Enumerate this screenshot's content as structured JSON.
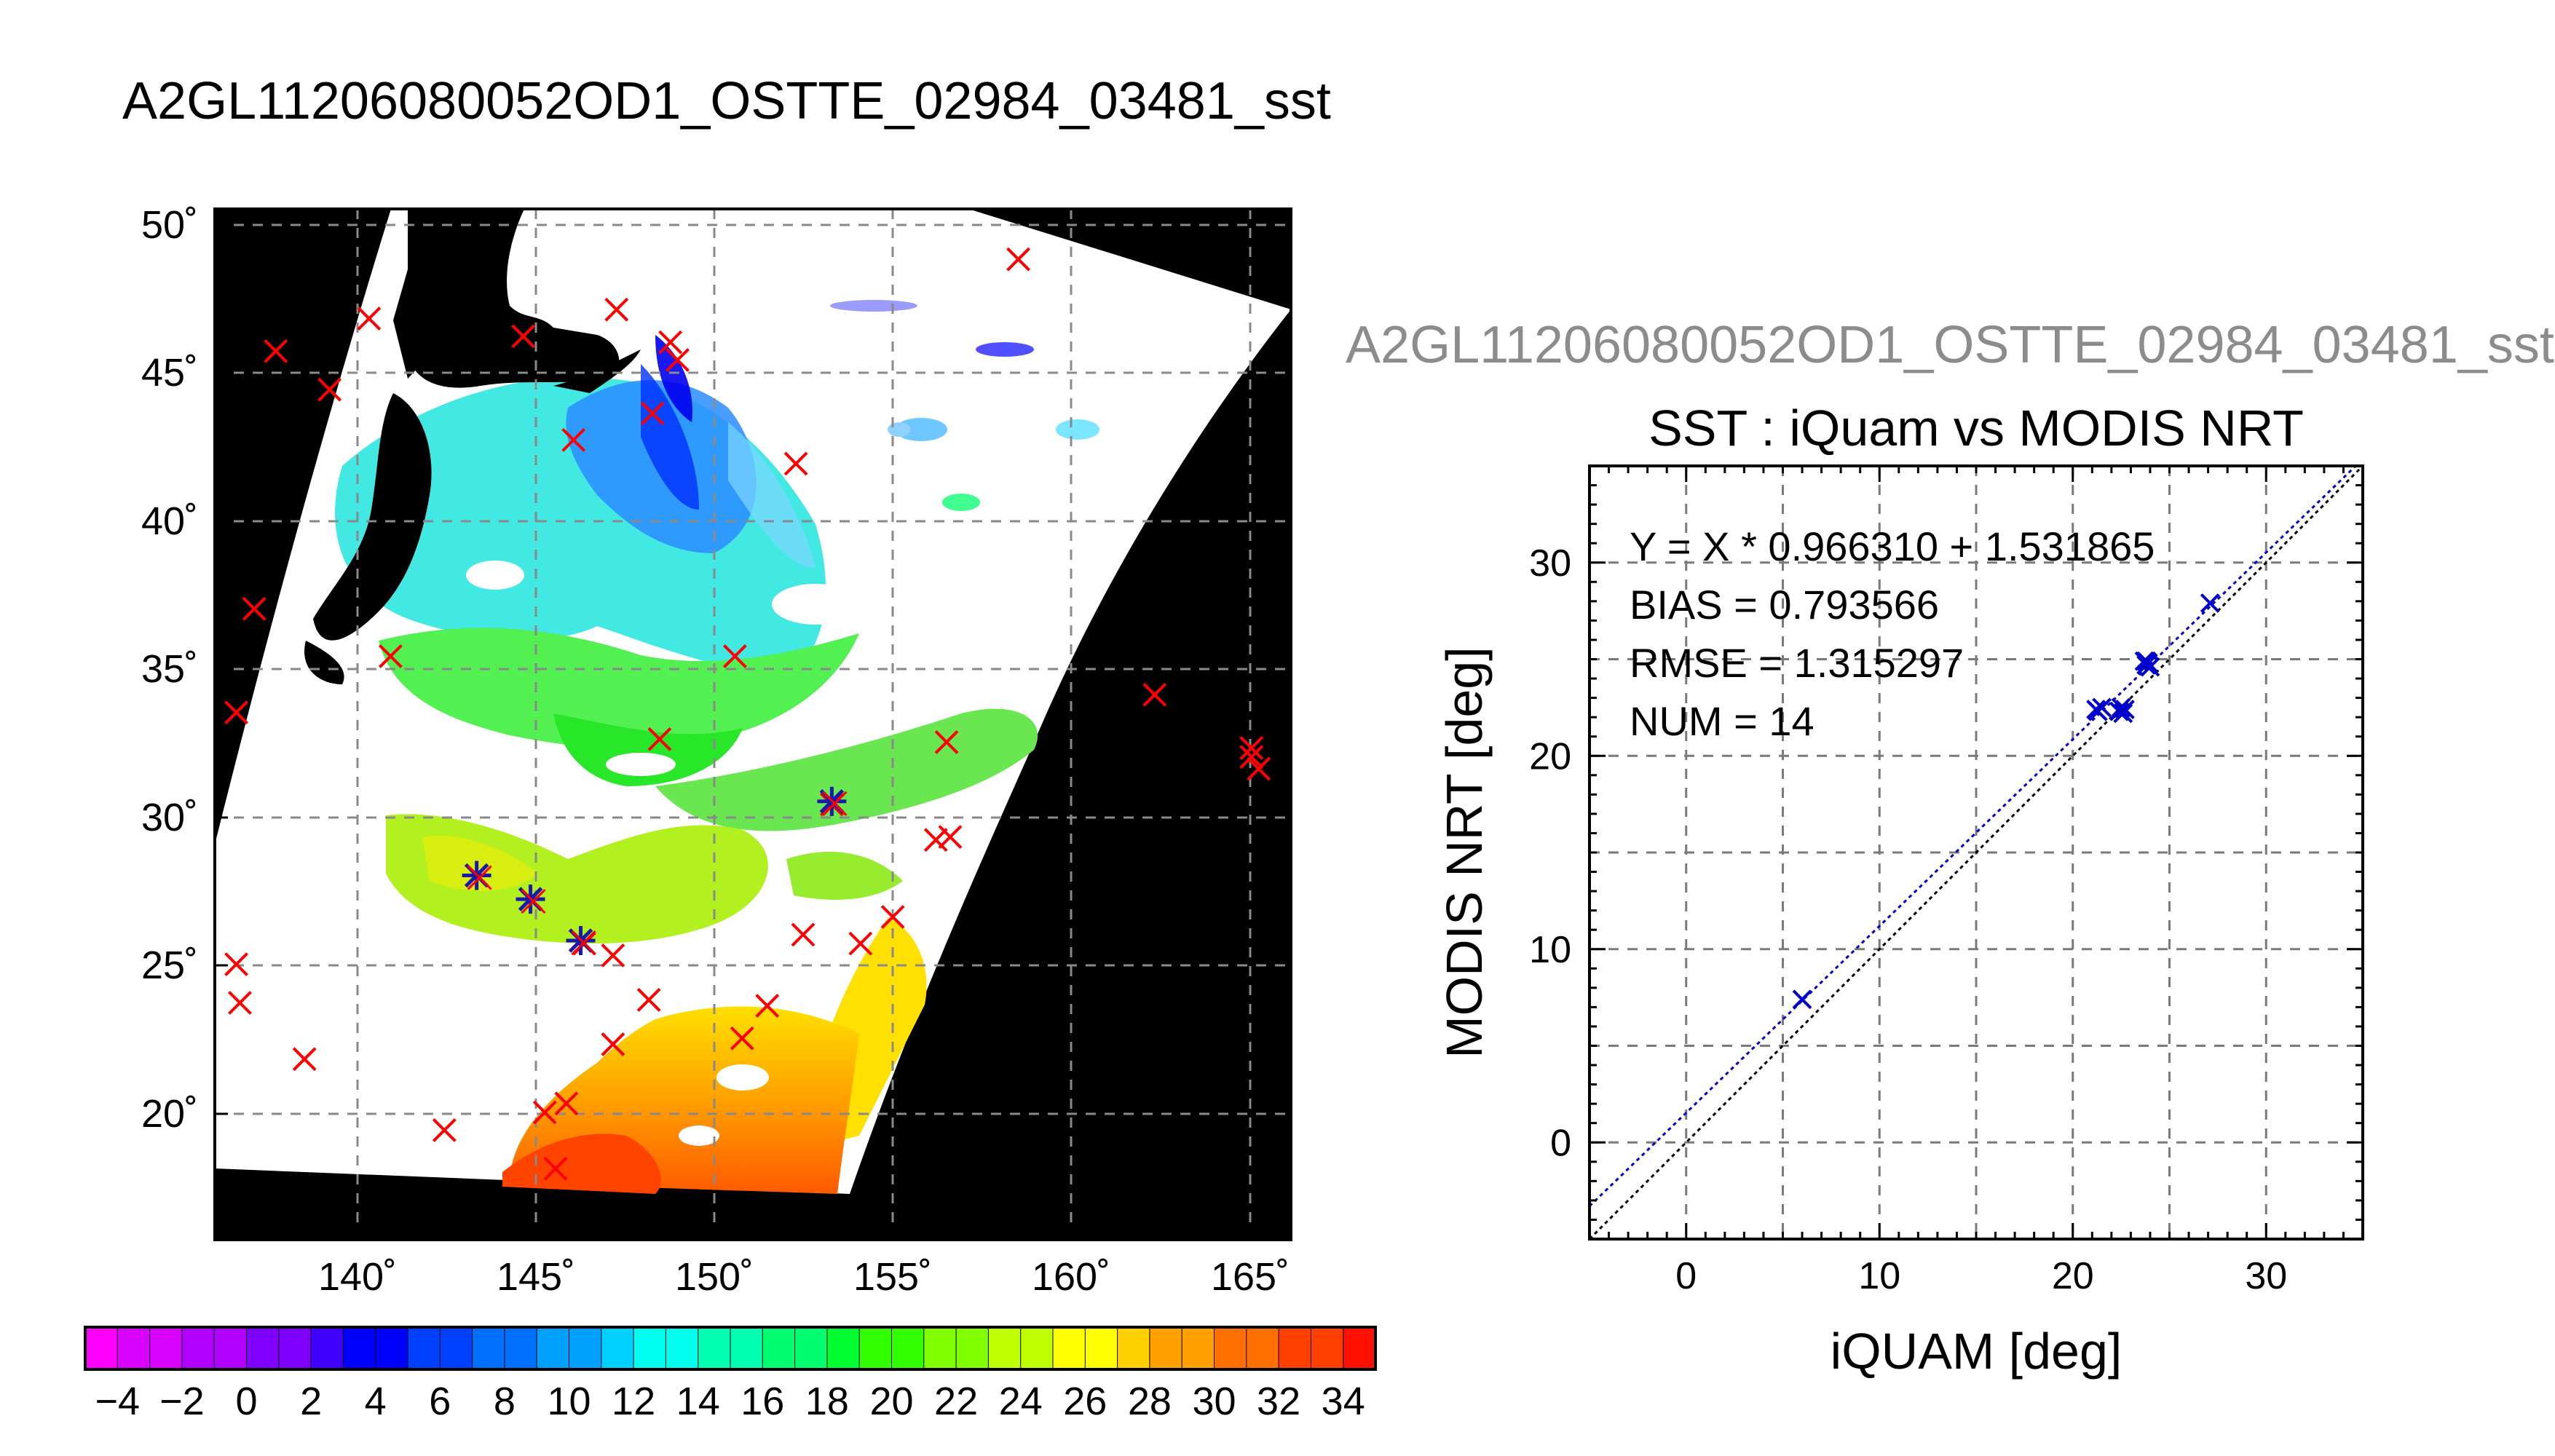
{
  "figure": {
    "main_title": "A2GL11206080052OD1_OSTTE_02984_03481_sst",
    "sub_title": "A2GL11206080052OD1_OSTTE_02984_03481_sst"
  },
  "chart_data": [
    {
      "type": "heatmap",
      "name": "sst-map",
      "x_tick_labels": [
        "140˚",
        "145˚",
        "150˚",
        "155˚",
        "160˚",
        "165˚"
      ],
      "y_tick_labels": [
        "50˚",
        "45˚",
        "40˚",
        "35˚",
        "30˚",
        "25˚",
        "20˚"
      ],
      "x_ticks": [
        140,
        145,
        150,
        155,
        160,
        165
      ],
      "y_ticks": [
        50,
        45,
        40,
        35,
        30,
        25,
        20
      ],
      "xlim": [
        136.0,
        166.0
      ],
      "ylim": [
        15.7,
        50.5
      ],
      "grid": true,
      "colors": {
        "land": "#000000",
        "cloud": "#ffffff",
        "marker_red": "#ff0000",
        "marker_blue": "#1a1aaa"
      },
      "red_markers": [
        {
          "lon": 137.7,
          "lat": 45.7
        },
        {
          "lon": 139.2,
          "lat": 44.4
        },
        {
          "lon": 140.3,
          "lat": 46.8
        },
        {
          "lon": 144.6,
          "lat": 46.2
        },
        {
          "lon": 147.2,
          "lat": 47.1
        },
        {
          "lon": 148.7,
          "lat": 46.0
        },
        {
          "lon": 148.9,
          "lat": 45.4
        },
        {
          "lon": 146.0,
          "lat": 42.7
        },
        {
          "lon": 148.2,
          "lat": 43.6
        },
        {
          "lon": 158.4,
          "lat": 48.8
        },
        {
          "lon": 152.2,
          "lat": 41.9
        },
        {
          "lon": 137.1,
          "lat": 37.0
        },
        {
          "lon": 136.6,
          "lat": 33.5
        },
        {
          "lon": 140.9,
          "lat": 35.4
        },
        {
          "lon": 150.5,
          "lat": 35.4
        },
        {
          "lon": 148.4,
          "lat": 32.6
        },
        {
          "lon": 153.2,
          "lat": 30.4
        },
        {
          "lon": 156.4,
          "lat": 32.5
        },
        {
          "lon": 156.1,
          "lat": 29.2
        },
        {
          "lon": 156.5,
          "lat": 29.3
        },
        {
          "lon": 162.2,
          "lat": 34.1
        },
        {
          "lon": 164.9,
          "lat": 32.3
        },
        {
          "lon": 164.9,
          "lat": 32.0
        },
        {
          "lon": 165.1,
          "lat": 31.6
        },
        {
          "lon": 136.6,
          "lat": 25.0
        },
        {
          "lon": 136.7,
          "lat": 23.7
        },
        {
          "lon": 138.5,
          "lat": 21.8
        },
        {
          "lon": 146.3,
          "lat": 25.7
        },
        {
          "lon": 147.1,
          "lat": 25.3
        },
        {
          "lon": 152.4,
          "lat": 26.0
        },
        {
          "lon": 154.0,
          "lat": 25.7
        },
        {
          "lon": 154.9,
          "lat": 26.6
        },
        {
          "lon": 147.1,
          "lat": 22.3
        },
        {
          "lon": 148.1,
          "lat": 23.8
        },
        {
          "lon": 151.4,
          "lat": 23.6
        },
        {
          "lon": 150.7,
          "lat": 22.5
        },
        {
          "lon": 145.8,
          "lat": 20.3
        },
        {
          "lon": 145.2,
          "lat": 20.0
        },
        {
          "lon": 142.4,
          "lat": 19.4
        },
        {
          "lon": 145.5,
          "lat": 18.1
        }
      ],
      "blue_markers": [
        {
          "lon": 143.3,
          "lat": 28.0
        },
        {
          "lon": 144.8,
          "lat": 27.2
        },
        {
          "lon": 146.2,
          "lat": 25.8
        },
        {
          "lon": 153.2,
          "lat": 30.5
        }
      ]
    },
    {
      "type": "colorbar",
      "name": "sst-colorbar",
      "tick_labels": [
        "−4",
        "−2",
        "0",
        "2",
        "4",
        "6",
        "8",
        "10",
        "12",
        "14",
        "16",
        "18",
        "20",
        "22",
        "24",
        "26",
        "28",
        "30",
        "32",
        "34"
      ],
      "min": -5,
      "max": 35,
      "step": 1,
      "colors": [
        "#ff00ff",
        "#d800ff",
        "#b000ff",
        "#8000ff",
        "#4000ff",
        "#0000ff",
        "#0040ff",
        "#0070ff",
        "#00a0ff",
        "#00d0ff",
        "#00ffee",
        "#00ffb0",
        "#00ff70",
        "#00ff30",
        "#30ff00",
        "#80ff00",
        "#c0ff00",
        "#ffff00",
        "#ffd000",
        "#ffa000",
        "#ff7000",
        "#ff4000",
        "#ff1000"
      ]
    },
    {
      "type": "scatter",
      "name": "sst-scatter",
      "title": "SST : iQuam vs MODIS NRT",
      "xlabel": "iQUAM [deg]",
      "ylabel": "MODIS NRT [deg]",
      "xlim": [
        -5,
        35
      ],
      "ylim": [
        -5,
        35
      ],
      "x_ticks": [
        0,
        10,
        20,
        30
      ],
      "y_ticks": [
        0,
        10,
        20,
        30
      ],
      "x_tick_labels": [
        "0",
        "10",
        "20",
        "30"
      ],
      "y_tick_labels": [
        "0",
        "10",
        "20",
        "30"
      ],
      "grid": true,
      "stats": [
        "Y = X * 0.966310 + 1.531865",
        "BIAS = 0.793566",
        "RMSE = 1.315297",
        "NUM = 14"
      ],
      "fit": {
        "slope": 0.96631,
        "intercept": 1.531865,
        "color": "#0000cc"
      },
      "identity_line_color": "#000000",
      "marker_color": "#0000cc",
      "points": [
        {
          "x": 6.0,
          "y": 7.4
        },
        {
          "x": 21.2,
          "y": 22.4
        },
        {
          "x": 21.3,
          "y": 22.3
        },
        {
          "x": 22.4,
          "y": 22.3
        },
        {
          "x": 22.6,
          "y": 22.2
        },
        {
          "x": 22.7,
          "y": 22.4
        },
        {
          "x": 23.8,
          "y": 24.7
        },
        {
          "x": 23.9,
          "y": 24.8
        },
        {
          "x": 23.7,
          "y": 24.9
        },
        {
          "x": 24.0,
          "y": 24.6
        },
        {
          "x": 23.8,
          "y": 24.9
        },
        {
          "x": 27.1,
          "y": 27.9
        },
        {
          "x": 21.5,
          "y": 22.5
        },
        {
          "x": 22.5,
          "y": 22.5
        }
      ]
    }
  ]
}
